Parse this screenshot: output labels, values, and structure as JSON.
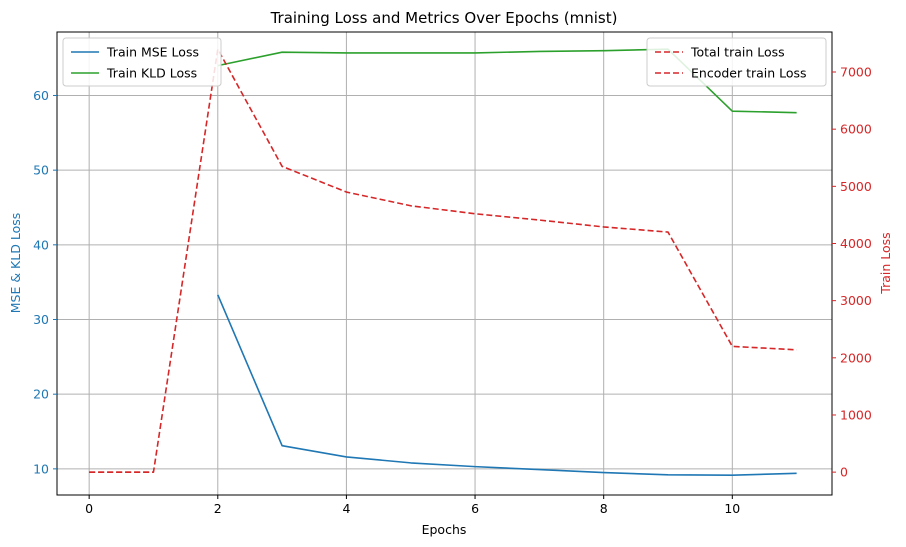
{
  "chart_data": {
    "type": "line",
    "title": "Training Loss and Metrics Over Epochs (mnist)",
    "xlabel": "Epochs",
    "ylabel_left": "MSE & KLD Loss",
    "ylabel_right": "Train Loss",
    "xlim": [
      -0.5,
      11.55
    ],
    "ylim_left": [
      6.5,
      68.5
    ],
    "ylim_right": [
      -400,
      7700
    ],
    "x_ticks": [
      0,
      2,
      4,
      6,
      8,
      10
    ],
    "y_left_ticks": [
      10,
      20,
      30,
      40,
      50,
      60
    ],
    "y_right_ticks": [
      0,
      1000,
      2000,
      3000,
      4000,
      5000,
      6000,
      7000
    ],
    "grid": true,
    "left_series": [
      {
        "name": "Train MSE Loss",
        "color": "#1f77b4",
        "dash": "solid",
        "x": [
          2,
          3,
          4,
          5,
          6,
          7,
          8,
          9,
          10,
          11
        ],
        "y": [
          33.3,
          13.1,
          11.6,
          10.8,
          10.3,
          9.9,
          9.5,
          9.2,
          9.15,
          9.4
        ]
      },
      {
        "name": "Train KLD Loss",
        "color": "#2ca02c",
        "dash": "solid",
        "x": [
          2,
          3,
          4,
          5,
          6,
          7,
          8,
          9,
          10,
          11
        ],
        "y": [
          64.0,
          65.8,
          65.7,
          65.7,
          65.7,
          65.9,
          66.0,
          66.2,
          57.9,
          57.7
        ]
      }
    ],
    "right_series": [
      {
        "name": "Total train Loss",
        "color": "#d62728",
        "dash": "dashed",
        "x": [
          0,
          1,
          2,
          3,
          4,
          5,
          6,
          7,
          8,
          9,
          10,
          11
        ],
        "y": [
          0,
          0,
          7400,
          5350,
          4900,
          4660,
          4520,
          4410,
          4290,
          4200,
          2200,
          2140
        ]
      },
      {
        "name": "Encoder train Loss",
        "color": "#d62728",
        "dash": "dashed",
        "x": [
          0,
          1
        ],
        "y": [
          0,
          0
        ]
      }
    ],
    "legend_left_position": "top-left",
    "legend_right_position": "top-right",
    "colors": {
      "left_axis": "#1f77b4",
      "right_axis": "#d62728",
      "grid": "#b0b0b0"
    }
  }
}
